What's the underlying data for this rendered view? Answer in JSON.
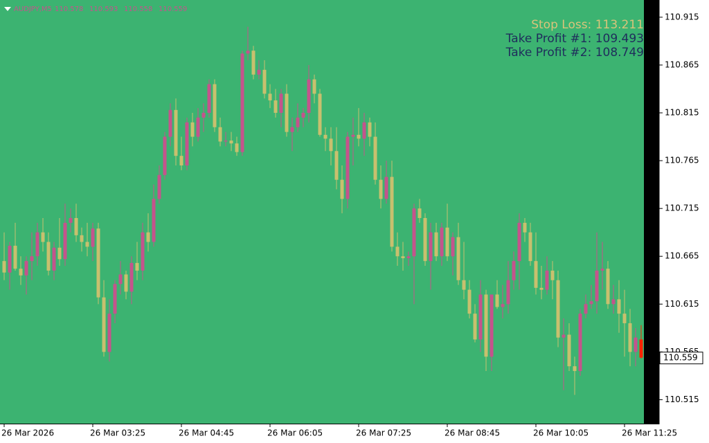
{
  "chart_data": {
    "type": "candlestick",
    "symbol": "AUDJPY,M5",
    "annotations": [
      "Stop Loss: 113.211",
      "Take Profit #1: 109.493",
      "Take Profit #2: 108.749"
    ],
    "up_color": "#c4548c",
    "down_color": "#c8c06e",
    "current_color": "#ff2200",
    "ylim": [
      110.49,
      110.933
    ],
    "yticks": [
      110.915,
      110.865,
      110.815,
      110.765,
      110.715,
      110.665,
      110.615,
      110.565,
      110.515
    ],
    "categories": [
      "26 Mar 2026",
      null,
      null,
      null,
      null,
      null,
      null,
      null,
      null,
      null,
      null,
      null,
      null,
      null,
      null,
      null,
      "26 Mar 03:25",
      null,
      null,
      null,
      null,
      null,
      null,
      null,
      null,
      null,
      null,
      null,
      null,
      null,
      null,
      null,
      "26 Mar 04:45",
      null,
      null,
      null,
      null,
      null,
      null,
      null,
      null,
      null,
      null,
      null,
      null,
      null,
      null,
      null,
      "26 Mar 06:05",
      null,
      null,
      null,
      null,
      null,
      null,
      null,
      null,
      null,
      null,
      null,
      null,
      null,
      null,
      null,
      "26 Mar 07:25",
      null,
      null,
      null,
      null,
      null,
      null,
      null,
      null,
      null,
      null,
      null,
      null,
      null,
      null,
      null,
      "26 Mar 08:45",
      null,
      null,
      null,
      null,
      null,
      null,
      null,
      null,
      null,
      null,
      null,
      null,
      null,
      null,
      null,
      "26 Mar 10:05",
      null,
      null,
      null,
      null,
      null,
      null,
      null,
      null,
      null,
      null,
      null,
      null,
      null,
      null,
      null,
      "26 Mar 11:25",
      null,
      null,
      null
    ],
    "ohlc": [
      [
        110.66,
        110.69,
        110.64,
        110.648
      ],
      [
        110.648,
        110.68,
        110.63,
        110.676
      ],
      [
        110.676,
        110.7,
        110.65,
        110.652
      ],
      [
        110.652,
        110.665,
        110.635,
        110.645
      ],
      [
        110.645,
        110.665,
        110.625,
        110.66
      ],
      [
        110.66,
        110.69,
        110.64,
        110.665
      ],
      [
        110.665,
        110.7,
        110.655,
        110.69
      ],
      [
        110.69,
        110.705,
        110.67,
        110.68
      ],
      [
        110.68,
        110.69,
        110.645,
        110.65
      ],
      [
        110.65,
        110.68,
        110.64,
        110.674
      ],
      [
        110.674,
        110.705,
        110.655,
        110.662
      ],
      [
        110.662,
        110.72,
        110.655,
        110.7
      ],
      [
        110.7,
        110.715,
        110.69,
        110.705
      ],
      [
        110.705,
        110.72,
        110.68,
        110.687
      ],
      [
        110.687,
        110.695,
        110.67,
        110.68
      ],
      [
        110.68,
        110.7,
        110.665,
        110.675
      ],
      [
        110.675,
        110.7,
        110.66,
        110.694
      ],
      [
        110.694,
        110.7,
        110.615,
        110.622
      ],
      [
        110.622,
        110.64,
        110.56,
        110.565
      ],
      [
        110.565,
        110.62,
        110.555,
        110.605
      ],
      [
        110.605,
        110.64,
        110.595,
        110.636
      ],
      [
        110.636,
        110.66,
        110.625,
        110.646
      ],
      [
        110.646,
        110.65,
        110.62,
        110.628
      ],
      [
        110.628,
        110.665,
        110.615,
        110.658
      ],
      [
        110.658,
        110.68,
        110.64,
        110.65
      ],
      [
        110.65,
        110.7,
        110.64,
        110.69
      ],
      [
        110.69,
        110.71,
        110.67,
        110.68
      ],
      [
        110.68,
        110.74,
        110.675,
        110.725
      ],
      [
        110.725,
        110.76,
        110.72,
        110.75
      ],
      [
        110.75,
        110.795,
        110.745,
        110.79
      ],
      [
        110.79,
        110.825,
        110.78,
        110.818
      ],
      [
        110.818,
        110.83,
        110.76,
        110.77
      ],
      [
        110.77,
        110.79,
        110.755,
        110.76
      ],
      [
        110.76,
        110.81,
        110.755,
        110.805
      ],
      [
        110.805,
        110.815,
        110.78,
        110.79
      ],
      [
        110.79,
        110.82,
        110.785,
        110.81
      ],
      [
        110.81,
        110.825,
        110.795,
        110.815
      ],
      [
        110.815,
        110.85,
        110.81,
        110.845
      ],
      [
        110.845,
        110.85,
        110.795,
        110.8
      ],
      [
        110.8,
        110.81,
        110.78,
        110.785
      ],
      [
        110.785,
        110.795,
        110.78,
        110.786
      ],
      [
        110.786,
        110.795,
        110.775,
        110.783
      ],
      [
        110.783,
        110.79,
        110.77,
        110.774
      ],
      [
        110.774,
        110.88,
        110.77,
        110.877
      ],
      [
        110.877,
        110.905,
        110.87,
        110.88
      ],
      [
        110.88,
        110.885,
        110.85,
        110.855
      ],
      [
        110.855,
        110.87,
        110.85,
        110.86
      ],
      [
        110.86,
        110.87,
        110.83,
        110.835
      ],
      [
        110.835,
        110.845,
        110.82,
        110.828
      ],
      [
        110.828,
        110.84,
        110.81,
        110.815
      ],
      [
        110.815,
        110.84,
        110.8,
        110.835
      ],
      [
        110.835,
        110.845,
        110.79,
        110.795
      ],
      [
        110.795,
        110.81,
        110.775,
        110.8
      ],
      [
        110.8,
        110.825,
        110.795,
        110.81
      ],
      [
        110.81,
        110.82,
        110.8,
        110.815
      ],
      [
        110.815,
        110.865,
        110.805,
        110.85
      ],
      [
        110.85,
        110.855,
        110.825,
        110.835
      ],
      [
        110.835,
        110.84,
        110.79,
        110.792
      ],
      [
        110.792,
        110.8,
        110.775,
        110.788
      ],
      [
        110.788,
        110.8,
        110.76,
        110.775
      ],
      [
        110.775,
        110.8,
        110.735,
        110.745
      ],
      [
        110.745,
        110.76,
        110.71,
        110.725
      ],
      [
        110.725,
        110.795,
        110.715,
        110.79
      ],
      [
        110.79,
        110.81,
        110.76,
        110.792
      ],
      [
        110.792,
        110.82,
        110.78,
        110.788
      ],
      [
        110.788,
        110.815,
        110.77,
        110.805
      ],
      [
        110.805,
        110.81,
        110.78,
        110.79
      ],
      [
        110.79,
        110.805,
        110.74,
        110.745
      ],
      [
        110.745,
        110.76,
        110.715,
        110.725
      ],
      [
        110.725,
        110.765,
        110.72,
        110.748
      ],
      [
        110.748,
        110.765,
        110.67,
        110.675
      ],
      [
        110.675,
        110.69,
        110.655,
        110.665
      ],
      [
        110.665,
        110.68,
        110.65,
        110.663
      ],
      [
        110.663,
        110.67,
        110.655,
        110.665
      ],
      [
        110.665,
        110.72,
        110.615,
        110.715
      ],
      [
        110.715,
        110.725,
        110.7,
        110.705
      ],
      [
        110.705,
        110.71,
        110.655,
        110.66
      ],
      [
        110.66,
        110.7,
        110.63,
        110.69
      ],
      [
        110.69,
        110.7,
        110.66,
        110.665
      ],
      [
        110.665,
        110.7,
        110.655,
        110.695
      ],
      [
        110.695,
        110.72,
        110.66,
        110.665
      ],
      [
        110.665,
        110.69,
        110.645,
        110.685
      ],
      [
        110.685,
        110.7,
        110.635,
        110.64
      ],
      [
        110.64,
        110.68,
        110.62,
        110.63
      ],
      [
        110.63,
        110.64,
        110.6,
        110.605
      ],
      [
        110.605,
        110.615,
        110.575,
        110.578
      ],
      [
        110.578,
        110.64,
        110.565,
        110.625
      ],
      [
        110.625,
        110.63,
        110.545,
        110.56
      ],
      [
        110.56,
        110.625,
        110.545,
        110.625
      ],
      [
        110.625,
        110.64,
        110.61,
        110.612
      ],
      [
        110.612,
        110.635,
        110.6,
        110.615
      ],
      [
        110.615,
        110.66,
        110.605,
        110.64
      ],
      [
        110.64,
        110.67,
        110.63,
        110.66
      ],
      [
        110.66,
        110.71,
        110.63,
        110.7
      ],
      [
        110.7,
        110.705,
        110.68,
        110.69
      ],
      [
        110.69,
        110.7,
        110.655,
        110.66
      ],
      [
        110.66,
        110.69,
        110.625,
        110.632
      ],
      [
        110.632,
        110.655,
        110.62,
        110.63
      ],
      [
        110.63,
        110.665,
        110.625,
        110.65
      ],
      [
        110.65,
        110.66,
        110.62,
        110.64
      ],
      [
        110.64,
        110.65,
        110.57,
        110.58
      ],
      [
        110.58,
        110.6,
        110.525,
        110.583
      ],
      [
        110.583,
        110.595,
        110.545,
        110.55
      ],
      [
        110.55,
        110.56,
        110.52,
        110.545
      ],
      [
        110.545,
        110.61,
        110.54,
        110.605
      ],
      [
        110.605,
        110.625,
        110.6,
        110.615
      ],
      [
        110.615,
        110.635,
        110.61,
        110.618
      ],
      [
        110.618,
        110.69,
        110.605,
        110.65
      ],
      [
        110.65,
        110.68,
        110.63,
        110.652
      ],
      [
        110.652,
        110.66,
        110.61,
        110.615
      ],
      [
        110.615,
        110.635,
        110.605,
        110.62
      ],
      [
        110.62,
        110.64,
        110.585,
        110.605
      ],
      [
        110.605,
        110.63,
        110.56,
        110.595
      ],
      [
        110.595,
        110.61,
        110.55,
        110.565
      ],
      [
        110.565,
        110.59,
        110.55,
        110.58
      ],
      [
        110.578,
        110.593,
        110.558,
        110.559
      ]
    ]
  }
}
